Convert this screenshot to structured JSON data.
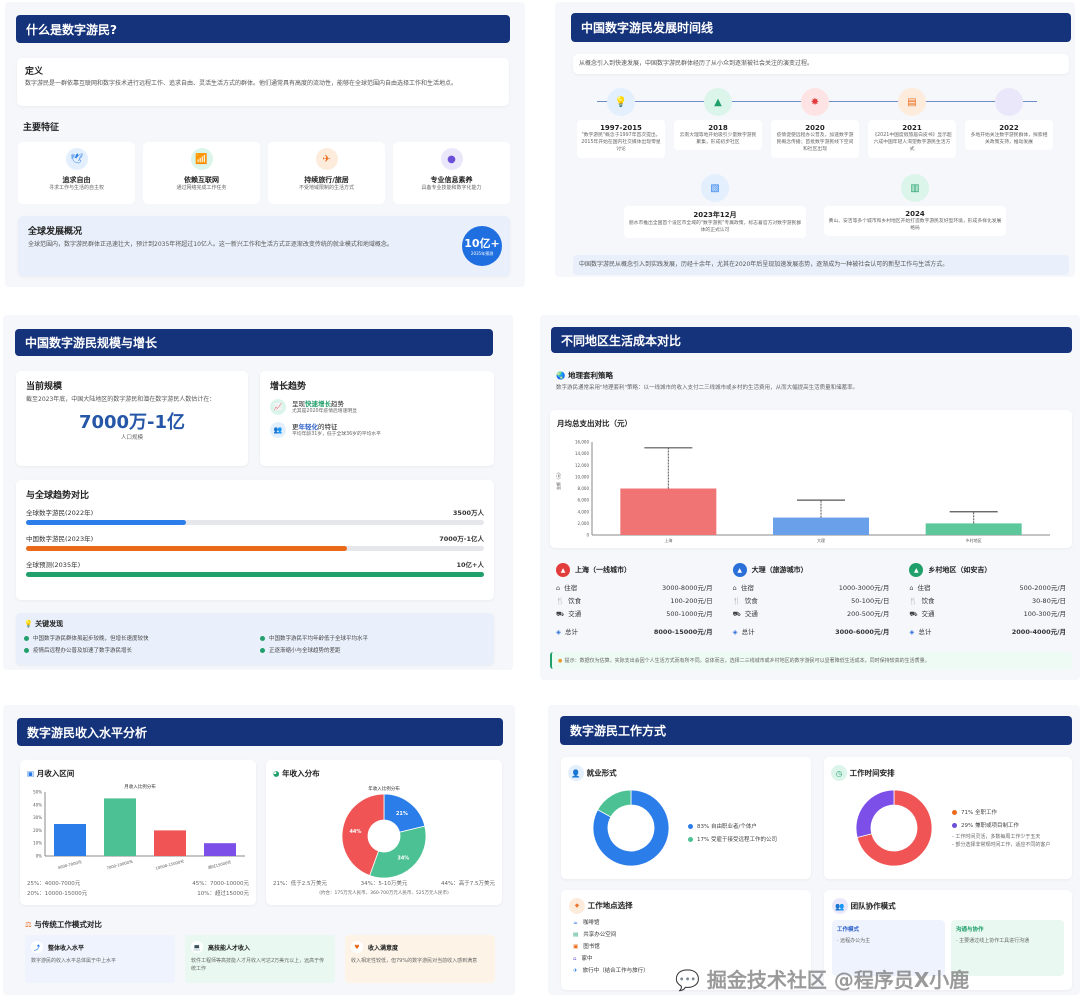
{
  "p1": {
    "title": "什么是数字游民?",
    "def_title": "定义",
    "def_text": "数字游民是一群依靠互联网和数字技术进行远程工作、追求自由、灵活生活方式的群体。他们通常具有高度的流动性，能够在全球范围内自由选择工作和生活地点。",
    "features_title": "主要特征",
    "features": [
      {
        "icon": "bird-icon",
        "title": "追求自由",
        "desc": "寻求工作与生活的自主权",
        "color": "#2b7de9",
        "bg": "#e3effd"
      },
      {
        "icon": "wifi-icon",
        "title": "依赖互联网",
        "desc": "通过网络完成工作任务",
        "color": "#22a06b",
        "bg": "#dcf5ea"
      },
      {
        "icon": "plane-icon",
        "title": "持续旅行/旅居",
        "desc": "不受地域限制的生活方式",
        "color": "#ea6a1a",
        "bg": "#fdecdc"
      },
      {
        "icon": "brain-icon",
        "title": "专业信息素养",
        "desc": "具备专业技能和数字化能力",
        "color": "#6c4fd8",
        "bg": "#ebe7fb"
      }
    ],
    "global_title": "全球发展概况",
    "global_text": "全球范围内，数字游民群体正迅速壮大，预计到2035年将超过10亿人。这一新兴工作和生活方式正逐渐改变传统的就业模式和地域概念。",
    "badge_value": "10亿+",
    "badge_sub": "2035年预测"
  },
  "p2": {
    "title": "中国数字游民发展时间线",
    "intro": "从概念引入到快速发展，中国数字游民群体经历了从小众到逐渐被社会关注的演变过程。",
    "events": [
      {
        "icon": "lightbulb-icon",
        "color": "#2b7de9",
        "bg": "#e3effd",
        "year": "1997-2015",
        "text": "\"数字游民\"概念于1997年首次提出，2015年开始在国内社交媒体出现零星讨论"
      },
      {
        "icon": "mountain-icon",
        "color": "#22a06b",
        "bg": "#dcf5ea",
        "year": "2018",
        "text": "云南大理等地开始吸引少量数字游民聚集，形成初步社区"
      },
      {
        "icon": "virus-icon",
        "color": "#e23c3c",
        "bg": "#fde3e3",
        "year": "2020",
        "text": "疫情促使远程办公普及，加速数字游民概念传播；首批数字游民线下空间和社区出现"
      },
      {
        "icon": "document-icon",
        "color": "#ea6a1a",
        "bg": "#fdecdc",
        "year": "2021",
        "text": "《2021中国度假旅居白皮书》显示超六成中国年轻人渴望数字游民生活方式"
      },
      {
        "icon": "circle-icon",
        "color": "#c9c3f2",
        "bg": "#ebe7fb",
        "year": "2022",
        "text": "多地开始关注数字游民群体，探索相关政策支持，推动发展"
      },
      {
        "icon": "file-chart-icon",
        "color": "#2b7de9",
        "bg": "#e3effd",
        "year": "2023年12月",
        "text": "丽水市推出全国首个设区市全域的\"数字游民\"专属政策，标志着官方对数字游民群体的正式认可"
      },
      {
        "icon": "city-icon",
        "color": "#22a06b",
        "bg": "#dcf5ea",
        "year": "2024",
        "text": "黄山、安吉等多个城市和乡村地区开始打造数字游民友好型环境，形成多样化发展格局"
      }
    ],
    "summary": "中国数字游民从概念引入到实践发展，历经十余年，尤其在2020年后呈现加速发展态势，逐渐成为一种被社会认可的新型工作与生活方式。"
  },
  "p3": {
    "title": "中国数字游民规模与增长",
    "scale_title": "当前规模",
    "scale_text": "截至2023年底，中国大陆地区的数字游民和潜在数字游民人数估计在：",
    "scale_value": "7000万-1亿",
    "scale_unit": "人口规模",
    "trend_title": "增长趋势",
    "trends": [
      {
        "icon": "chart-line-icon",
        "pre": "呈现",
        "hl": "快速增长",
        "post": "趋势",
        "sub": "尤其是2020年疫情后增速明显",
        "color": "#22a06b",
        "bg": "#dcf5ea"
      },
      {
        "icon": "users-icon",
        "pre": "更",
        "hl": "年轻化",
        "post": "的特征",
        "sub": "平均年龄31岁，低于全球36岁的平均水平",
        "color": "#2b5fc9",
        "bg": "#e3effd"
      }
    ],
    "compare_title": "与全球趋势对比",
    "bars": [
      {
        "label": "全球数字游民(2022年)",
        "value": "3500万人",
        "pct": 35,
        "color": "#2b7de9"
      },
      {
        "label": "中国数字游民(2023年)",
        "value": "7000万-1亿人",
        "pct": 70,
        "color": "#ea6a1a"
      },
      {
        "label": "全球预测(2035年)",
        "value": "10亿+人",
        "pct": 100,
        "color": "#22a06b"
      }
    ],
    "findings_title": "关键发现",
    "findings": [
      "中国数字游民群体虽起步较晚，但增长速度较快",
      "中国数字游民平均年龄低于全球平均水平",
      "疫情后远程办公普及加速了数字游民增长",
      "正逐渐缩小与全球趋势的差距"
    ]
  },
  "p4": {
    "title": "不同地区生活成本对比",
    "geo_title": "地理套利策略",
    "geo_text": "数字游民通常采用\"地理套利\"策略：以一线城市的收入支付二三线城市或乡村的生活费用，从而大幅提高生活质量和储蓄率。",
    "chart_data": {
      "type": "bar",
      "title": "月均总支出对比（元）",
      "ylabel": "金额（元）",
      "categories": [
        "上海",
        "大理",
        "乡村地区"
      ],
      "values": [
        8000,
        3000,
        2000
      ],
      "error_upper": [
        15000,
        6000,
        4000
      ],
      "ylim": [
        0,
        16000
      ],
      "yticks": [
        "0",
        "2,000",
        "4,000",
        "6,000",
        "8,000",
        "10,000",
        "12,000",
        "14,000",
        "16,000"
      ],
      "colors": [
        "#f07474",
        "#6aa0ea",
        "#5cc79a"
      ],
      "grid": false
    },
    "regions": [
      {
        "name": "上海（一线城市）",
        "color": "#e23c3c",
        "housing": "3000-8000元/月",
        "food": "100-200元/日",
        "transport": "500-1000元/月",
        "total": "8000-15000元/月"
      },
      {
        "name": "大理（旅游城市）",
        "color": "#2b6fd8",
        "housing": "1000-3000元/月",
        "food": "50-100元/日",
        "transport": "200-500元/月",
        "total": "3000-6000元/月"
      },
      {
        "name": "乡村地区（如安吉）",
        "color": "#22a06b",
        "housing": "500-2000元/月",
        "food": "30-80元/日",
        "transport": "100-300元/月",
        "total": "2000-4000元/月"
      }
    ],
    "labels": {
      "housing": "住宿",
      "food": "饮食",
      "transport": "交通",
      "total": "总计"
    },
    "tip": "提示：数据仅为估算，实际支出会因个人生活方式而有所不同。总体而言，选择二三线城市或乡村地区的数字游民可以显著降低生活成本，同时保持较高的生活质量。"
  },
  "p5": {
    "title": "数字游民收入水平分析",
    "monthly_title": "月收入区间",
    "annual_title": "年收入分布",
    "monthly_chart": {
      "type": "bar",
      "title": "月收入比例分布",
      "categories": [
        "4000-7000元",
        "7000-10000元",
        "10000-15000元",
        "超过15000元"
      ],
      "values": [
        25,
        45,
        20,
        10
      ],
      "ylim": [
        0,
        50
      ],
      "yticks": [
        "0%",
        "10%",
        "20%",
        "30%",
        "40%",
        "50%"
      ],
      "colors": [
        "#2b7de9",
        "#4cc294",
        "#f05454",
        "#7b4fe8"
      ]
    },
    "monthly_legend": [
      "25%：4000-7000元",
      "45%：7000-10000元",
      "20%：10000-15000元",
      "10%：超过15000元"
    ],
    "annual_chart": {
      "type": "pie",
      "title": "年收入比例分布",
      "categories": [
        "低于2.5万美元",
        "5-10万美元",
        "高于7.5万美元"
      ],
      "values": [
        21,
        34,
        44
      ],
      "colors": [
        "#2b7de9",
        "#4cc294",
        "#f05454"
      ]
    },
    "annual_legend": [
      "21%：低于2.5万美元",
      "34%：5-10万美元",
      "44%：高于7.5万美元"
    ],
    "annual_note": "(约合：175万元人民币、360-700万元人民币、525万元人民币)",
    "compare_title": "与传统工作模式对比",
    "compare": [
      {
        "icon": "arrow-up-icon",
        "title": "整体收入水平",
        "text": "数字游民的收入水平总体属于中上水平",
        "bg": "#eef3fd",
        "color": "#2b7de9"
      },
      {
        "icon": "laptop-icon",
        "title": "高技能人才收入",
        "text": "软件工程师等高技能人才月收入可达2万美元以上，远高于传统工作",
        "bg": "#e9f9f1",
        "color": "#22a06b"
      },
      {
        "icon": "heart-icon",
        "title": "收入满意度",
        "text": "收入相定性较低，但79%的数字游民对当前收入感到满意",
        "bg": "#fdf4e7",
        "color": "#ea6a1a"
      }
    ]
  },
  "p6": {
    "title": "数字游民工作方式",
    "employment_title": "就业形式",
    "time_title": "工作时间安排",
    "employment_chart": {
      "type": "pie",
      "categories": [
        "自由职业者/个体户",
        "受雇于接受远程工作的公司"
      ],
      "values": [
        83,
        17
      ],
      "colors": [
        "#2b7de9",
        "#4cc294"
      ]
    },
    "employment_legend": [
      "83% 自由职业者/个体户",
      "17% 受雇于接受远程工作的公司"
    ],
    "time_chart": {
      "type": "pie",
      "categories": [
        "全职工作",
        "兼职或项目制工作"
      ],
      "values": [
        71,
        29
      ],
      "colors": [
        "#f05454",
        "#7b4fe8"
      ]
    },
    "time_legend": [
      "71% 全职工作",
      "29% 兼职或项目制工作"
    ],
    "time_notes": [
      "- 工作时间灵活，多数每周工作少于五天",
      "- 部分选择非常规时间工作，适应不同的客户"
    ],
    "location_title": "工作地点选择",
    "locations": [
      {
        "icon": "coffee-icon",
        "label": "咖啡馆",
        "color": "#2b6fd8"
      },
      {
        "icon": "building-icon",
        "label": "共享办公空间",
        "color": "#22a06b"
      },
      {
        "icon": "book-icon",
        "label": "图书馆",
        "color": "#ea6a1a"
      },
      {
        "icon": "home-icon",
        "label": "家中",
        "color": "#6c4fd8"
      },
      {
        "icon": "plane-icon",
        "label": "旅行中（结合工作与旅行）",
        "color": "#2b7de9"
      }
    ],
    "team_title": "团队协作模式",
    "team_cards": [
      {
        "title": "工作模式",
        "text": "· 远程办公为主"
      },
      {
        "title": "沟通与协作",
        "text": "· 主要通过线上协作工具进行沟通"
      }
    ]
  },
  "watermark": "掘金技术社区 @程序员X小鹿"
}
